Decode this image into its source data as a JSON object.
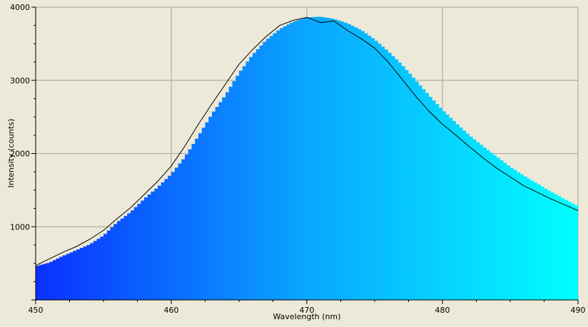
{
  "chart_data": {
    "type": "area",
    "title": "",
    "xlabel": "Wavelength (nm)",
    "ylabel": "Intensity (counts)",
    "xlim": [
      450,
      490
    ],
    "ylim": [
      0,
      4000
    ],
    "xticks": [
      450,
      460,
      470,
      480,
      490
    ],
    "yticks": [
      1000,
      2000,
      3000,
      4000
    ],
    "xtick_labels": [
      "450",
      "460",
      "470",
      "480",
      "490"
    ],
    "ytick_labels": [
      "1000",
      "2000",
      "3000",
      "4000"
    ],
    "grid": true,
    "legend": "none",
    "fill_gradient": [
      "#0a30ff",
      "#0aa6ff",
      "#00ffff"
    ],
    "line_color": "#000000",
    "background": "#ece9d8",
    "series": [
      {
        "role": "fill",
        "x": [
          450,
          451,
          452,
          453,
          454,
          455,
          456,
          457,
          458,
          459,
          460,
          461,
          462,
          463,
          464,
          465,
          466,
          467,
          468,
          469,
          470,
          471,
          472,
          473,
          474,
          475,
          476,
          477,
          478,
          479,
          480,
          481,
          482,
          483,
          484,
          485,
          486,
          487,
          488,
          489,
          490
        ],
        "y": [
          460,
          510,
          600,
          680,
          760,
          880,
          1060,
          1200,
          1380,
          1540,
          1720,
          1950,
          2240,
          2540,
          2800,
          3100,
          3350,
          3550,
          3700,
          3800,
          3860,
          3870,
          3840,
          3780,
          3690,
          3560,
          3400,
          3220,
          3010,
          2800,
          2600,
          2420,
          2250,
          2100,
          1960,
          1820,
          1700,
          1590,
          1480,
          1380,
          1280
        ]
      },
      {
        "role": "line",
        "x": [
          450,
          451,
          452,
          453,
          454,
          455,
          456,
          457,
          458,
          459,
          460,
          461,
          462,
          463,
          464,
          465,
          466,
          467,
          468,
          469,
          470,
          471,
          472,
          473,
          474,
          475,
          476,
          477,
          478,
          479,
          480,
          481,
          482,
          483,
          484,
          485,
          486,
          487,
          488,
          489,
          490
        ],
        "y": [
          470,
          560,
          650,
          730,
          830,
          950,
          1110,
          1260,
          1440,
          1620,
          1830,
          2100,
          2400,
          2680,
          2950,
          3220,
          3420,
          3600,
          3750,
          3820,
          3860,
          3790,
          3810,
          3680,
          3570,
          3440,
          3250,
          3020,
          2790,
          2580,
          2400,
          2250,
          2090,
          1940,
          1800,
          1680,
          1560,
          1470,
          1380,
          1300,
          1220
        ]
      }
    ]
  }
}
